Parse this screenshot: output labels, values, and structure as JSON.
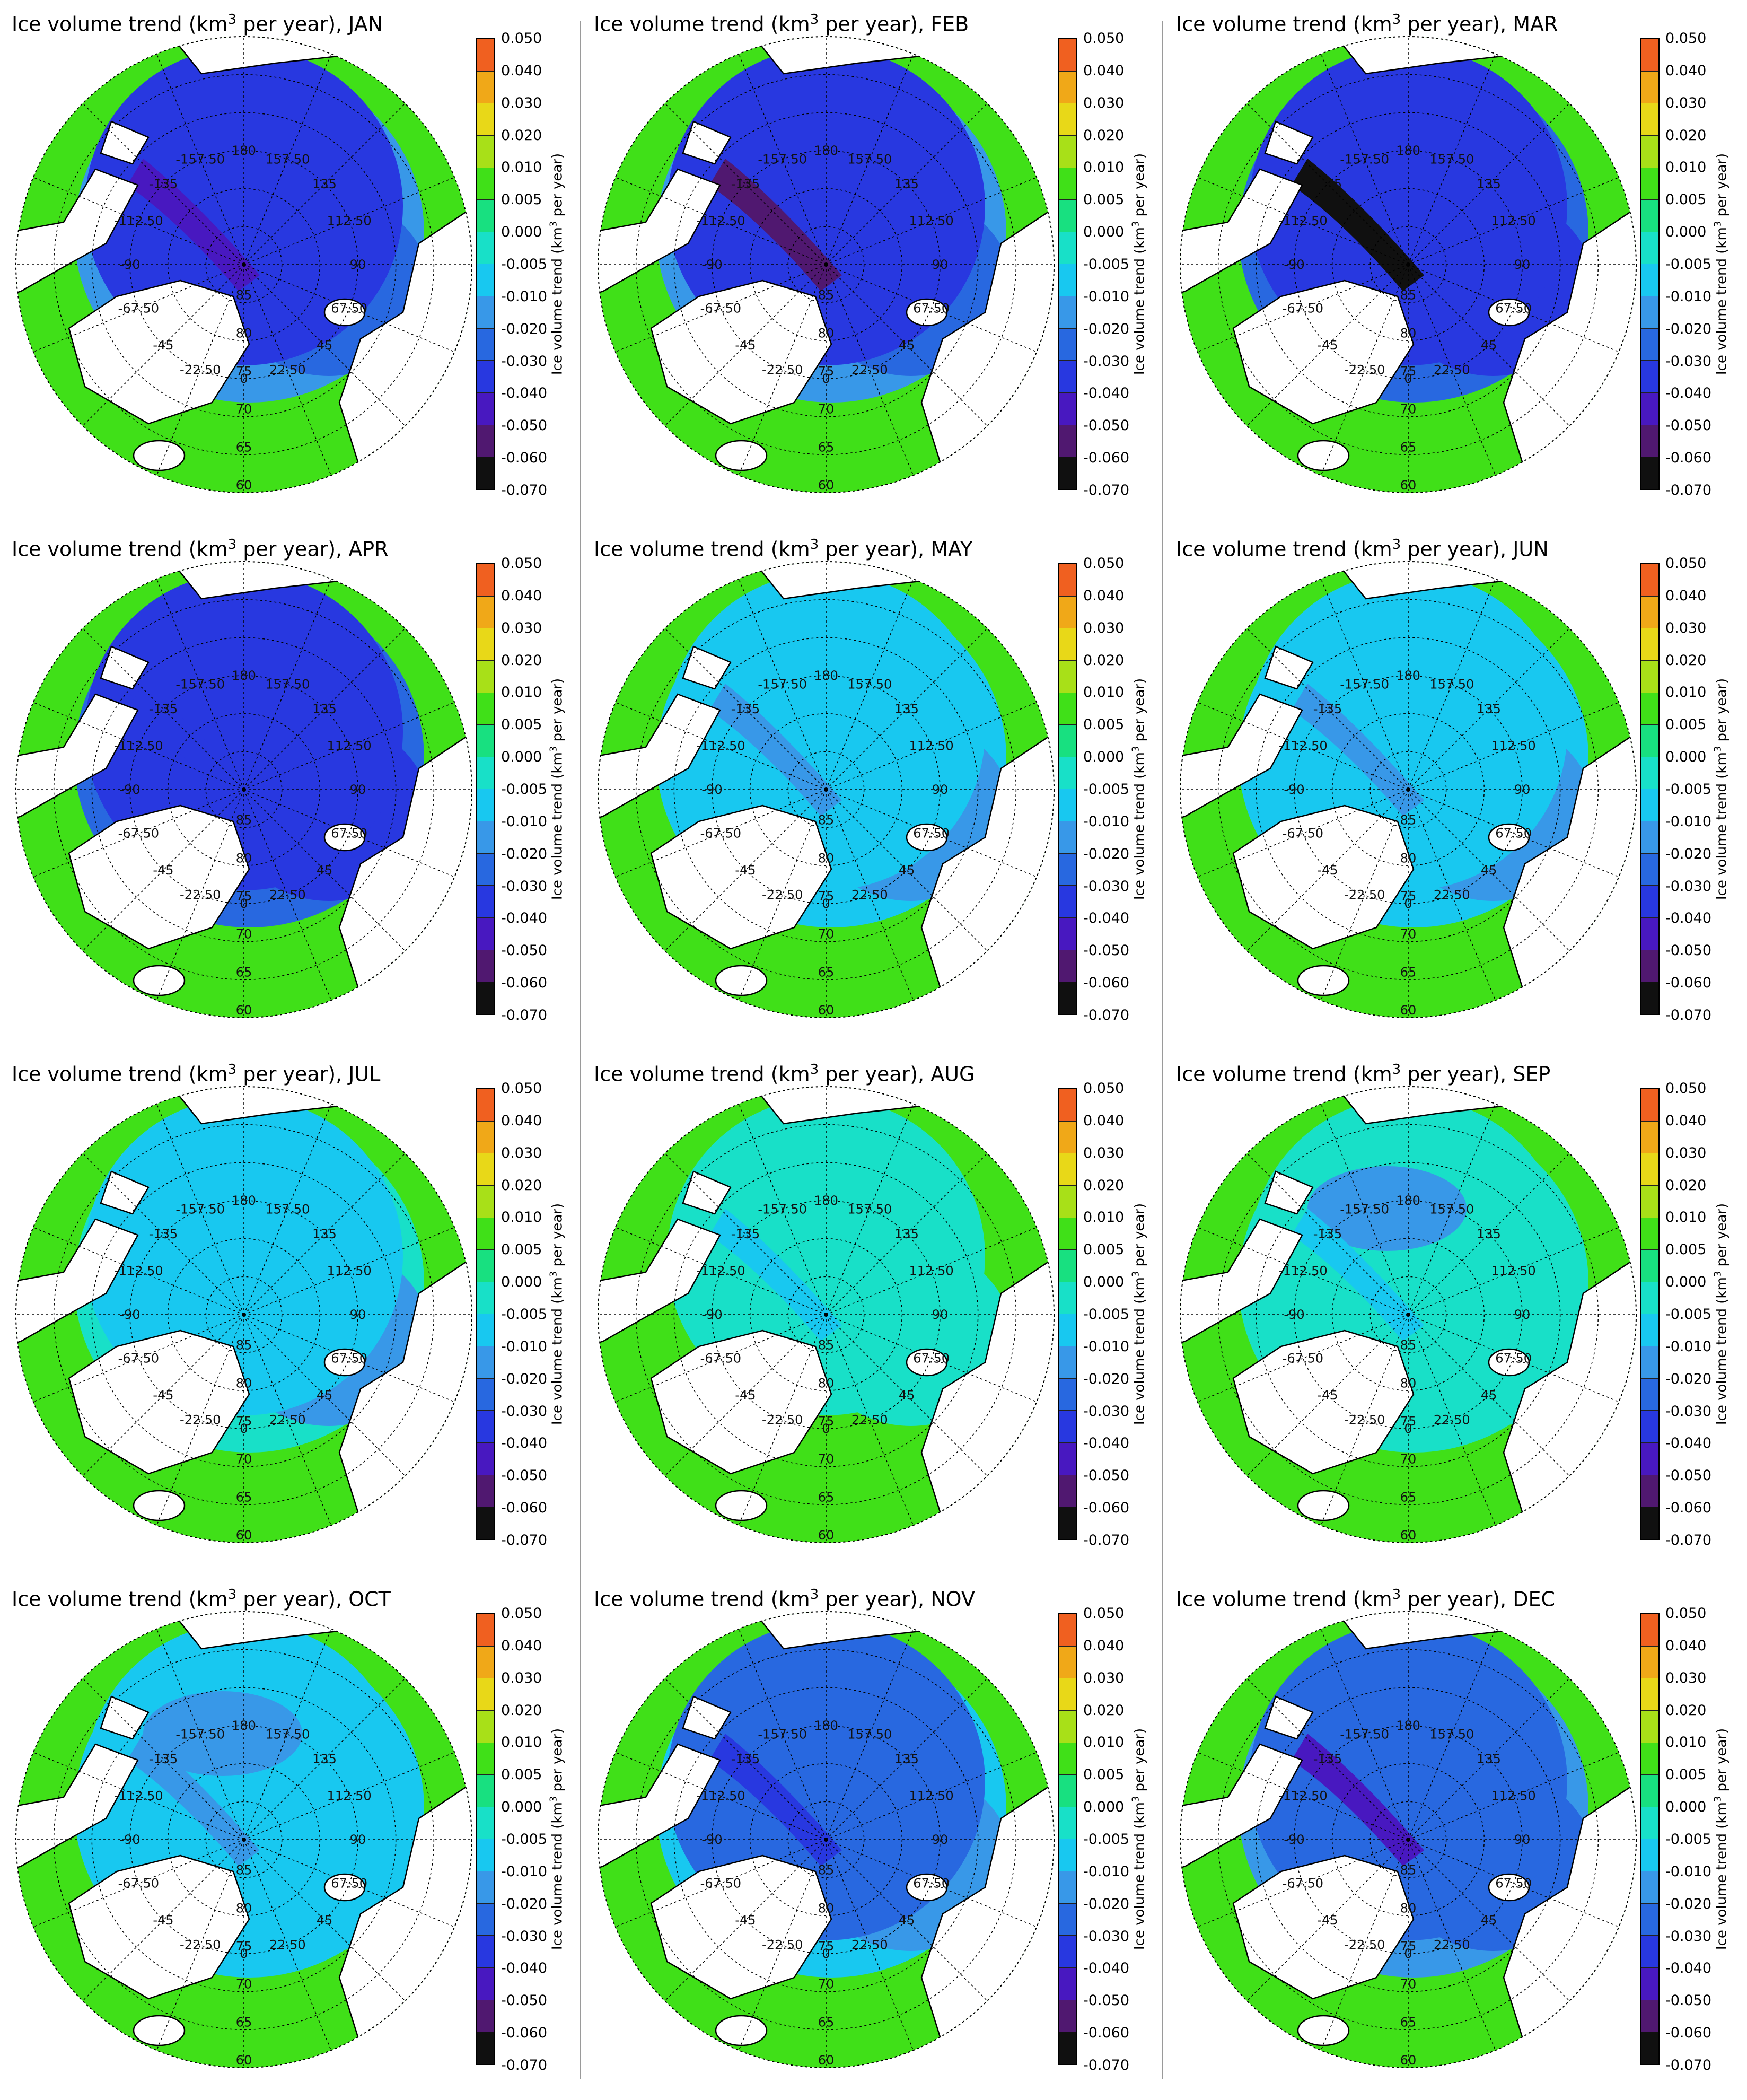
{
  "figure": {
    "title_prefix": "Ice volume trend",
    "unit_open": "(km",
    "unit_exponent": "3",
    "unit_close": " per year)",
    "colorbar_label_prefix": "Ice volume trend  (km",
    "colorbar_label_exponent": "3",
    "colorbar_label_suffix": " per year)"
  },
  "months": [
    "JAN",
    "FEB",
    "MAR",
    "APR",
    "MAY",
    "JUN",
    "JUL",
    "AUG",
    "SEP",
    "OCT",
    "NOV",
    "DEC"
  ],
  "colorbar": {
    "ticks": [
      "0.050",
      "0.040",
      "0.030",
      "0.020",
      "0.010",
      "0.005",
      "0.000",
      "-0.005",
      "-0.010",
      "-0.020",
      "-0.030",
      "-0.040",
      "-0.050",
      "-0.060",
      "-0.070"
    ],
    "colors": [
      "#f06020",
      "#f0a818",
      "#e8d818",
      "#a8e018",
      "#40e018",
      "#18e080",
      "#18e0c8",
      "#18c8f0",
      "#3898e8",
      "#2868e0",
      "#2838e0",
      "#4818c0",
      "#501870",
      "#101010"
    ]
  },
  "map_labels": {
    "longitudes": [
      "180",
      "157.50",
      "-157.50",
      "135",
      "-135",
      "112.50",
      "-112.50",
      "90",
      "-90",
      "67.50",
      "-67.50",
      "45",
      "-45",
      "22.50",
      "-22.50",
      "0"
    ],
    "latitudes": [
      "85",
      "80",
      "75",
      "70",
      "65",
      "60"
    ]
  },
  "chart_data": [
    {
      "type": "heatmap",
      "title": "Ice volume trend (km3 per year), JAN",
      "month": "JAN",
      "regions": {
        "central_arctic": -0.04,
        "north_of_greenland": -0.05,
        "barents_kara": -0.03,
        "greenland_sea": -0.02,
        "atlantic": 0.005
      },
      "colorbar_range": [
        -0.07,
        0.05
      ]
    },
    {
      "type": "heatmap",
      "title": "Ice volume trend (km3 per year), FEB",
      "month": "FEB",
      "regions": {
        "central_arctic": -0.04,
        "north_of_greenland": -0.06,
        "barents_kara": -0.03,
        "greenland_sea": -0.02,
        "atlantic": 0.005
      },
      "colorbar_range": [
        -0.07,
        0.05
      ]
    },
    {
      "type": "heatmap",
      "title": "Ice volume trend (km3 per year), MAR",
      "month": "MAR",
      "regions": {
        "central_arctic": -0.04,
        "north_of_greenland": -0.07,
        "barents_kara": -0.04,
        "greenland_sea": -0.03,
        "atlantic": 0.005
      },
      "colorbar_range": [
        -0.07,
        0.05
      ]
    },
    {
      "type": "heatmap",
      "title": "Ice volume trend (km3 per year), APR",
      "month": "APR",
      "regions": {
        "central_arctic": -0.04,
        "north_of_greenland": -0.04,
        "barents_kara": -0.04,
        "greenland_sea": -0.03,
        "atlantic": 0.005
      },
      "colorbar_range": [
        -0.07,
        0.05
      ]
    },
    {
      "type": "heatmap",
      "title": "Ice volume trend (km3 per year), MAY",
      "month": "MAY",
      "regions": {
        "central_arctic": -0.01,
        "north_of_greenland": -0.02,
        "barents_kara": -0.02,
        "greenland_sea": -0.01,
        "atlantic": 0.005
      },
      "colorbar_range": [
        -0.07,
        0.05
      ]
    },
    {
      "type": "heatmap",
      "title": "Ice volume trend (km3 per year), JUN",
      "month": "JUN",
      "regions": {
        "central_arctic": -0.01,
        "north_of_greenland": -0.02,
        "barents_kara": -0.02,
        "greenland_sea": -0.01,
        "atlantic": 0.005
      },
      "colorbar_range": [
        -0.07,
        0.05
      ]
    },
    {
      "type": "heatmap",
      "title": "Ice volume trend (km3 per year), JUL",
      "month": "JUL",
      "regions": {
        "central_arctic": -0.01,
        "north_of_greenland": -0.01,
        "barents_kara": -0.02,
        "greenland_sea": -0.005,
        "atlantic": 0.005
      },
      "colorbar_range": [
        -0.07,
        0.05
      ]
    },
    {
      "type": "heatmap",
      "title": "Ice volume trend (km3 per year), AUG",
      "month": "AUG",
      "regions": {
        "central_arctic": -0.005,
        "north_of_greenland": -0.01,
        "barents_kara": -0.005,
        "greenland_sea": 0.005,
        "atlantic": 0.005
      },
      "colorbar_range": [
        -0.07,
        0.05
      ]
    },
    {
      "type": "heatmap",
      "title": "Ice volume trend (km3 per year), SEP",
      "month": "SEP",
      "regions": {
        "central_arctic": -0.005,
        "north_of_greenland": -0.01,
        "beaufort": -0.02,
        "barents_kara": -0.005,
        "atlantic": 0.005
      },
      "colorbar_range": [
        -0.07,
        0.05
      ]
    },
    {
      "type": "heatmap",
      "title": "Ice volume trend (km3 per year), OCT",
      "month": "OCT",
      "regions": {
        "central_arctic": -0.01,
        "north_of_greenland": -0.02,
        "beaufort": -0.02,
        "barents_kara": -0.01,
        "atlantic": 0.005
      },
      "colorbar_range": [
        -0.07,
        0.05
      ]
    },
    {
      "type": "heatmap",
      "title": "Ice volume trend (km3 per year), NOV",
      "month": "NOV",
      "regions": {
        "central_arctic": -0.03,
        "north_of_greenland": -0.04,
        "barents_kara": -0.02,
        "greenland_sea": -0.01,
        "atlantic": 0.005
      },
      "colorbar_range": [
        -0.07,
        0.05
      ]
    },
    {
      "type": "heatmap",
      "title": "Ice volume trend (km3 per year), DEC",
      "month": "DEC",
      "regions": {
        "central_arctic": -0.03,
        "north_of_greenland": -0.05,
        "barents_kara": -0.03,
        "greenland_sea": -0.02,
        "atlantic": 0.005
      },
      "colorbar_range": [
        -0.07,
        0.05
      ]
    }
  ]
}
